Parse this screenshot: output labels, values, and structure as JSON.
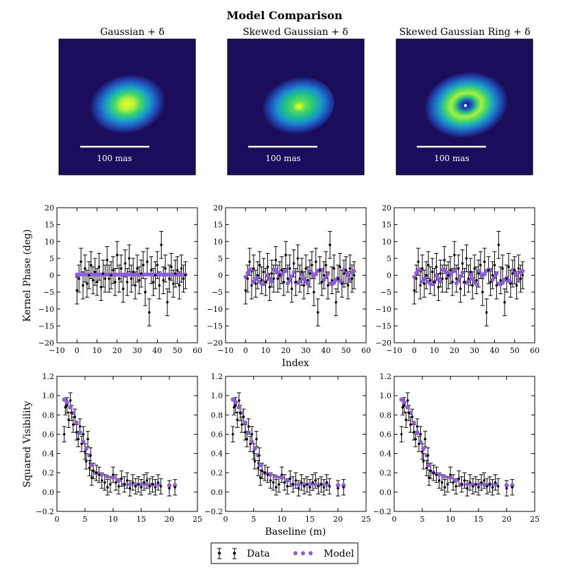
{
  "figure": {
    "title": "Model Comparison",
    "panel_titles": [
      "Gaussian + δ",
      "Skewed Gaussian + δ",
      "Skewed Gaussian Ring + δ"
    ],
    "scalebar_label": "100 mas",
    "kernel_ylabel": "Kernel Phase (deg)",
    "kernel_xlabel": "Index",
    "vis_ylabel": "Squared Visibility",
    "vis_xlabel": "Baseline (m)",
    "legend": {
      "data_label": "Data",
      "model_label": "Model"
    },
    "colors": {
      "data": "#000000",
      "model": "#8c5fd6",
      "image_bg": "#1b0c5c"
    }
  },
  "chart_data": [
    {
      "type": "heatmap",
      "panel": "image",
      "title": "Gaussian + δ",
      "morphology": "smooth elliptical gaussian, center bright yellow-green",
      "scalebar": "100 mas"
    },
    {
      "type": "heatmap",
      "panel": "image",
      "title": "Skewed Gaussian + δ",
      "morphology": "skewed gaussian with bright point source near center",
      "scalebar": "100 mas"
    },
    {
      "type": "heatmap",
      "panel": "image",
      "title": "Skewed Gaussian Ring + δ",
      "morphology": "skewed ring with dark center and bright point source",
      "scalebar": "100 mas"
    },
    {
      "type": "scatter",
      "panel": "kernel_phase",
      "model": {
        "x_range": [
          0,
          54
        ],
        "y": [
          0.2
        ]
      },
      "xlim": [
        -10,
        60
      ],
      "ylim": [
        -20,
        20
      ],
      "xticks": [
        -10,
        0,
        10,
        20,
        30,
        40,
        50,
        60
      ],
      "yticks": [
        -20,
        -15,
        -10,
        -5,
        0,
        5,
        10,
        15,
        20
      ],
      "xlabel": "",
      "ylabel": "Kernel Phase (deg)",
      "data": {
        "x": [
          0,
          1,
          2,
          3,
          4,
          5,
          6,
          7,
          8,
          9,
          10,
          11,
          12,
          13,
          14,
          15,
          16,
          17,
          18,
          19,
          20,
          21,
          22,
          23,
          24,
          25,
          26,
          27,
          28,
          29,
          30,
          31,
          32,
          33,
          34,
          35,
          36,
          37,
          38,
          39,
          40,
          41,
          42,
          43,
          44,
          45,
          46,
          47,
          48,
          49,
          50,
          51,
          52,
          53,
          54
        ],
        "y": [
          -4.5,
          -1,
          4,
          -3,
          2,
          -2.5,
          0,
          3,
          -1.5,
          1,
          -2,
          2.5,
          -3.5,
          0.5,
          -1,
          4.5,
          -1,
          0,
          1.5,
          -2,
          6,
          -1,
          2,
          -4,
          3.5,
          -2,
          5,
          -1,
          1,
          -3,
          2,
          -1.5,
          0.5,
          3,
          -5,
          4,
          -11,
          1.5,
          -2,
          0,
          3,
          -3,
          9,
          -1.5,
          2,
          -8,
          -1,
          2.5,
          -2.5,
          0.5,
          1.5,
          -3,
          2,
          -1,
          0
        ],
        "err": [
          4
        ]
      }
    },
    {
      "type": "scatter",
      "panel": "kernel_phase",
      "model": {
        "x_range": [
          0,
          54
        ],
        "shape": "oscillating between -3 and 2"
      },
      "xlim": [
        -10,
        60
      ],
      "ylim": [
        -20,
        20
      ],
      "xticks": [
        -10,
        0,
        10,
        20,
        30,
        40,
        50,
        60
      ],
      "yticks": [
        -20,
        -15,
        -10,
        -5,
        0,
        5,
        10,
        15,
        20
      ],
      "xlabel": "Index",
      "ylabel": "",
      "data": {
        "same_as": "Gaussian + δ"
      }
    },
    {
      "type": "scatter",
      "panel": "kernel_phase",
      "model": {
        "x_range": [
          0,
          54
        ],
        "shape": "oscillating between -3 and 2"
      },
      "xlim": [
        -10,
        60
      ],
      "ylim": [
        -20,
        20
      ],
      "xticks": [
        -10,
        0,
        10,
        20,
        30,
        40,
        50,
        60
      ],
      "yticks": [
        -20,
        -15,
        -10,
        -5,
        0,
        5,
        10,
        15,
        20
      ],
      "xlabel": "",
      "ylabel": "",
      "data": {
        "same_as": "Gaussian + δ"
      }
    },
    {
      "type": "scatter",
      "panel": "squared_visibility",
      "model": {
        "x": [
          1.3,
          1.8,
          2.4,
          2.9,
          3.5,
          4.1,
          4.7,
          5.2,
          5.8,
          6.2,
          7.0,
          8.0,
          9.0,
          10.0,
          11.0,
          12.0,
          13.0,
          14.0,
          15.0,
          16.0,
          17.0,
          18.0,
          20.0,
          21.0
        ],
        "y": [
          0.96,
          0.93,
          0.88,
          0.82,
          0.72,
          0.62,
          0.52,
          0.45,
          0.38,
          0.28,
          0.2,
          0.18,
          0.16,
          0.15,
          0.12,
          0.08,
          0.08,
          0.08,
          0.08,
          0.08,
          0.08,
          0.08,
          0.07,
          0.07
        ]
      },
      "xlim": [
        0,
        25
      ],
      "ylim": [
        -0.2,
        1.2
      ],
      "xticks": [
        0,
        5,
        10,
        15,
        20,
        25
      ],
      "yticks": [
        -0.2,
        0.0,
        0.2,
        0.4,
        0.6,
        0.8,
        1.0,
        1.2
      ],
      "xlabel": "",
      "ylabel": "Squared Visibility",
      "data": {
        "x": [
          1.3,
          1.5,
          1.8,
          2.1,
          2.4,
          2.6,
          2.9,
          3.2,
          3.5,
          3.8,
          4.1,
          4.4,
          4.7,
          5.0,
          5.2,
          5.5,
          5.8,
          6.0,
          6.2,
          6.5,
          7.0,
          7.5,
          8.0,
          8.5,
          9.0,
          9.5,
          10.0,
          10.5,
          11.0,
          11.5,
          12.0,
          12.5,
          13.0,
          13.5,
          14.0,
          14.5,
          15.0,
          15.5,
          16.0,
          16.5,
          17.0,
          17.5,
          18.0,
          18.5,
          20.0,
          21.0
        ],
        "y": [
          0.6,
          0.88,
          0.9,
          0.75,
          0.95,
          0.82,
          0.7,
          0.78,
          0.62,
          0.55,
          0.68,
          0.5,
          0.6,
          0.42,
          0.32,
          0.55,
          0.25,
          0.38,
          0.15,
          0.22,
          0.2,
          0.18,
          0.12,
          0.1,
          0.05,
          0.08,
          0.18,
          0.1,
          0.06,
          0.14,
          0.08,
          0.12,
          0.04,
          0.1,
          0.06,
          0.08,
          0.05,
          0.1,
          0.12,
          0.06,
          0.08,
          0.05,
          0.1,
          0.06,
          0.04,
          0.05
        ],
        "err": [
          0.08
        ]
      }
    },
    {
      "type": "scatter",
      "panel": "squared_visibility",
      "model": {
        "same_as": "Gaussian + δ"
      },
      "xlim": [
        0,
        25
      ],
      "ylim": [
        -0.2,
        1.2
      ],
      "xticks": [
        0,
        5,
        10,
        15,
        20,
        25
      ],
      "yticks": [
        -0.2,
        0.0,
        0.2,
        0.4,
        0.6,
        0.8,
        1.0,
        1.2
      ],
      "xlabel": "Baseline (m)",
      "ylabel": "",
      "data": {
        "same_as": "Gaussian + δ"
      }
    },
    {
      "type": "scatter",
      "panel": "squared_visibility",
      "model": {
        "same_as": "Gaussian + δ"
      },
      "xlim": [
        0,
        25
      ],
      "ylim": [
        -0.2,
        1.2
      ],
      "xticks": [
        0,
        5,
        10,
        15,
        20,
        25
      ],
      "yticks": [
        -0.2,
        0.0,
        0.2,
        0.4,
        0.6,
        0.8,
        1.0,
        1.2
      ],
      "xlabel": "",
      "ylabel": "",
      "data": {
        "same_as": "Gaussian + δ"
      }
    }
  ]
}
